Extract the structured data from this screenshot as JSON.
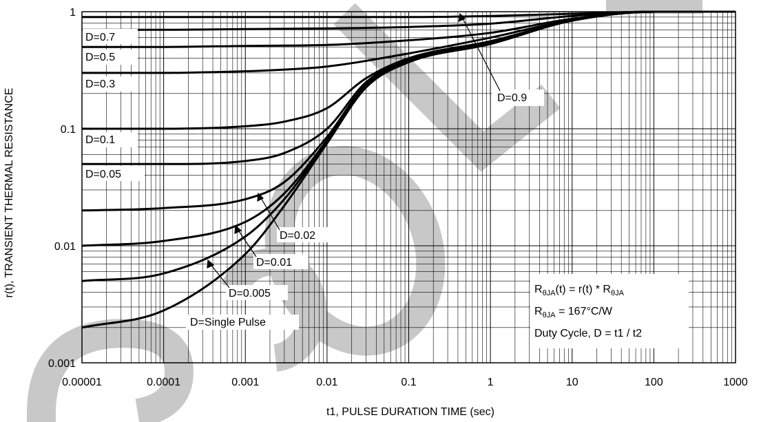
{
  "chart_data": {
    "type": "line",
    "title": "",
    "xlabel": "t1, PULSE DURATION TIME (sec)",
    "ylabel": "r(t), TRANSIENT THERMAL RESISTANCE",
    "xscale": "log",
    "yscale": "log",
    "xlim": [
      1e-05,
      1000
    ],
    "ylim": [
      0.001,
      1
    ],
    "grid": true,
    "legend": "none",
    "x_ticks": [
      "0.00001",
      "0.0001",
      "0.001",
      "0.01",
      "0.1",
      "1",
      "10",
      "100",
      "1000"
    ],
    "y_ticks": [
      "0.001",
      "0.01",
      "0.1",
      "1"
    ],
    "series": [
      {
        "name": "D=0.9",
        "x": [
          1e-05,
          0.0001,
          0.001,
          0.01,
          0.1,
          1,
          10,
          100,
          1000
        ],
        "y": [
          0.9,
          0.9,
          0.9,
          0.9,
          0.9,
          0.92,
          0.96,
          1.0,
          1.0
        ]
      },
      {
        "name": "D=0.7",
        "x": [
          1e-05,
          0.0001,
          0.001,
          0.01,
          0.1,
          1,
          10,
          100,
          1000
        ],
        "y": [
          0.7,
          0.7,
          0.71,
          0.72,
          0.74,
          0.79,
          0.92,
          1.0,
          1.0
        ]
      },
      {
        "name": "D=0.5",
        "x": [
          1e-05,
          0.0001,
          0.001,
          0.01,
          0.1,
          1,
          10,
          100,
          1000
        ],
        "y": [
          0.5,
          0.5,
          0.51,
          0.52,
          0.57,
          0.66,
          0.87,
          1.0,
          1.0
        ]
      },
      {
        "name": "D=0.3",
        "x": [
          1e-05,
          0.0001,
          0.001,
          0.003,
          0.01,
          0.1,
          1,
          10,
          100,
          1000
        ],
        "y": [
          0.3,
          0.3,
          0.31,
          0.32,
          0.34,
          0.44,
          0.6,
          0.85,
          1.0,
          1.0
        ]
      },
      {
        "name": "D=0.1",
        "x": [
          1e-05,
          0.0001,
          0.001,
          0.003,
          0.01,
          0.03,
          0.1,
          1,
          10,
          100,
          1000
        ],
        "y": [
          0.1,
          0.1,
          0.105,
          0.115,
          0.15,
          0.27,
          0.4,
          0.56,
          0.84,
          1.0,
          1.0
        ]
      },
      {
        "name": "D=0.05",
        "x": [
          1e-05,
          0.0001,
          0.001,
          0.003,
          0.01,
          0.03,
          0.1,
          1,
          10,
          100,
          1000
        ],
        "y": [
          0.05,
          0.05,
          0.053,
          0.062,
          0.1,
          0.25,
          0.39,
          0.55,
          0.84,
          1.0,
          1.0
        ]
      },
      {
        "name": "D=0.02",
        "x": [
          1e-05,
          0.0001,
          0.001,
          0.003,
          0.01,
          0.03,
          0.1,
          1,
          10,
          100,
          1000
        ],
        "y": [
          0.02,
          0.021,
          0.025,
          0.035,
          0.085,
          0.24,
          0.38,
          0.54,
          0.84,
          1.0,
          1.0
        ]
      },
      {
        "name": "D=0.01",
        "x": [
          1e-05,
          0.0001,
          0.001,
          0.003,
          0.01,
          0.03,
          0.1,
          1,
          10,
          100,
          1000
        ],
        "y": [
          0.01,
          0.011,
          0.016,
          0.028,
          0.08,
          0.235,
          0.375,
          0.54,
          0.84,
          1.0,
          1.0
        ]
      },
      {
        "name": "D=0.005",
        "x": [
          1e-05,
          0.0001,
          0.001,
          0.003,
          0.01,
          0.03,
          0.1,
          1,
          10,
          100,
          1000
        ],
        "y": [
          0.005,
          0.0058,
          0.012,
          0.025,
          0.078,
          0.23,
          0.372,
          0.535,
          0.84,
          1.0,
          1.0
        ]
      },
      {
        "name": "D=Single Pulse",
        "x": [
          1e-05,
          0.0001,
          0.001,
          0.003,
          0.01,
          0.03,
          0.1,
          1,
          10,
          100,
          1000
        ],
        "y": [
          0.002,
          0.0028,
          0.0085,
          0.022,
          0.075,
          0.225,
          0.37,
          0.53,
          0.84,
          1.0,
          1.0
        ]
      }
    ],
    "annotations": {
      "d09": "D=0.9",
      "d07": "D=0.7",
      "d05": "D=0.5",
      "d03": "D=0.3",
      "d01": "D=0.1",
      "d005": "D=0.05",
      "d002": "D=0.02",
      "d001": "D=0.01",
      "d0005": "D=0.005",
      "single": "D=Single Pulse"
    },
    "equations": {
      "line1_R": "R",
      "line1_sub1": "θJA",
      "line1_mid": "(t) = r(t) * R",
      "line1_sub2": "θJA",
      "line2_R": "R",
      "line2_sub": "θJA",
      "line2_rest": " = 167°C/W",
      "line3": "Duty Cycle, D = t1 / t2"
    },
    "colors": {
      "line": "#000000",
      "grid": "#000000",
      "watermark": "#c8c8c8"
    }
  }
}
